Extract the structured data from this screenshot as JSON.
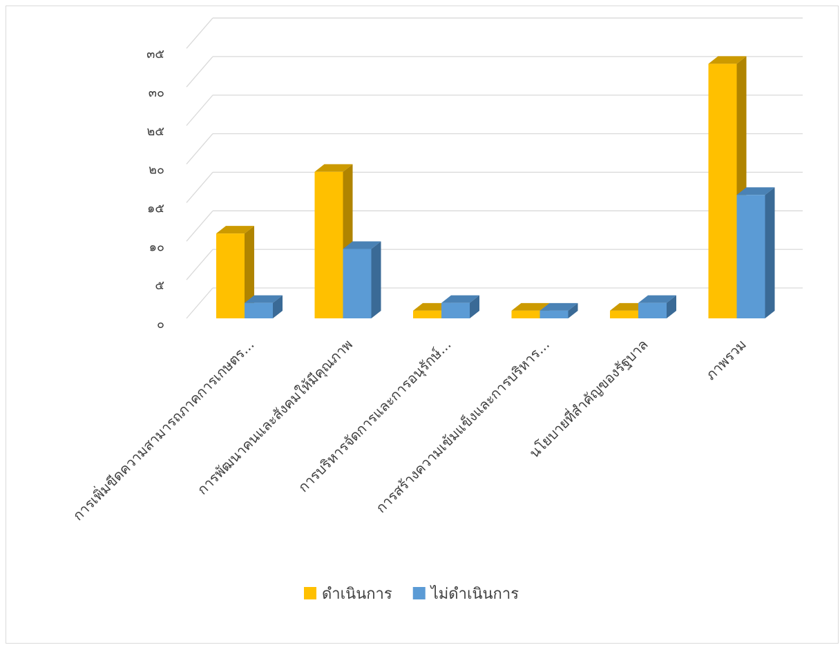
{
  "chart_data": {
    "type": "bar",
    "title": "",
    "xlabel": "",
    "ylabel": "",
    "ylim": [
      0,
      35
    ],
    "yticks": [
      0,
      5,
      10,
      15,
      20,
      25,
      30,
      35
    ],
    "ytick_labels": [
      "๐",
      "๕",
      "๑๐",
      "๑๕",
      "๒๐",
      "๒๕",
      "๓๐",
      "๓๕"
    ],
    "categories": [
      "การเพิ่มขีดความสามารถภาคการเกษตร...",
      "การพัฒนาคนและสังคมให้มีคุณภาพ",
      "การบริหารจัดการและการอนุรักษ์...",
      "การสร้างความเข้มแข็งและการบริหาร...",
      "นโยบายที่สำคัญของรัฐบาล",
      "ภาพรวม"
    ],
    "series": [
      {
        "name": "ดำเนินการ",
        "values": [
          11,
          19,
          1,
          1,
          1,
          33
        ],
        "color": "#FFC000",
        "side_color": "#B08400",
        "top_color": "#CC9A00"
      },
      {
        "name": "ไม่ดำเนินการ",
        "values": [
          2,
          9,
          2,
          1,
          2,
          16
        ],
        "color": "#5B9BD5",
        "side_color": "#3A6A96",
        "top_color": "#4A82B5"
      }
    ],
    "grid": true,
    "legend_position": "bottom"
  }
}
